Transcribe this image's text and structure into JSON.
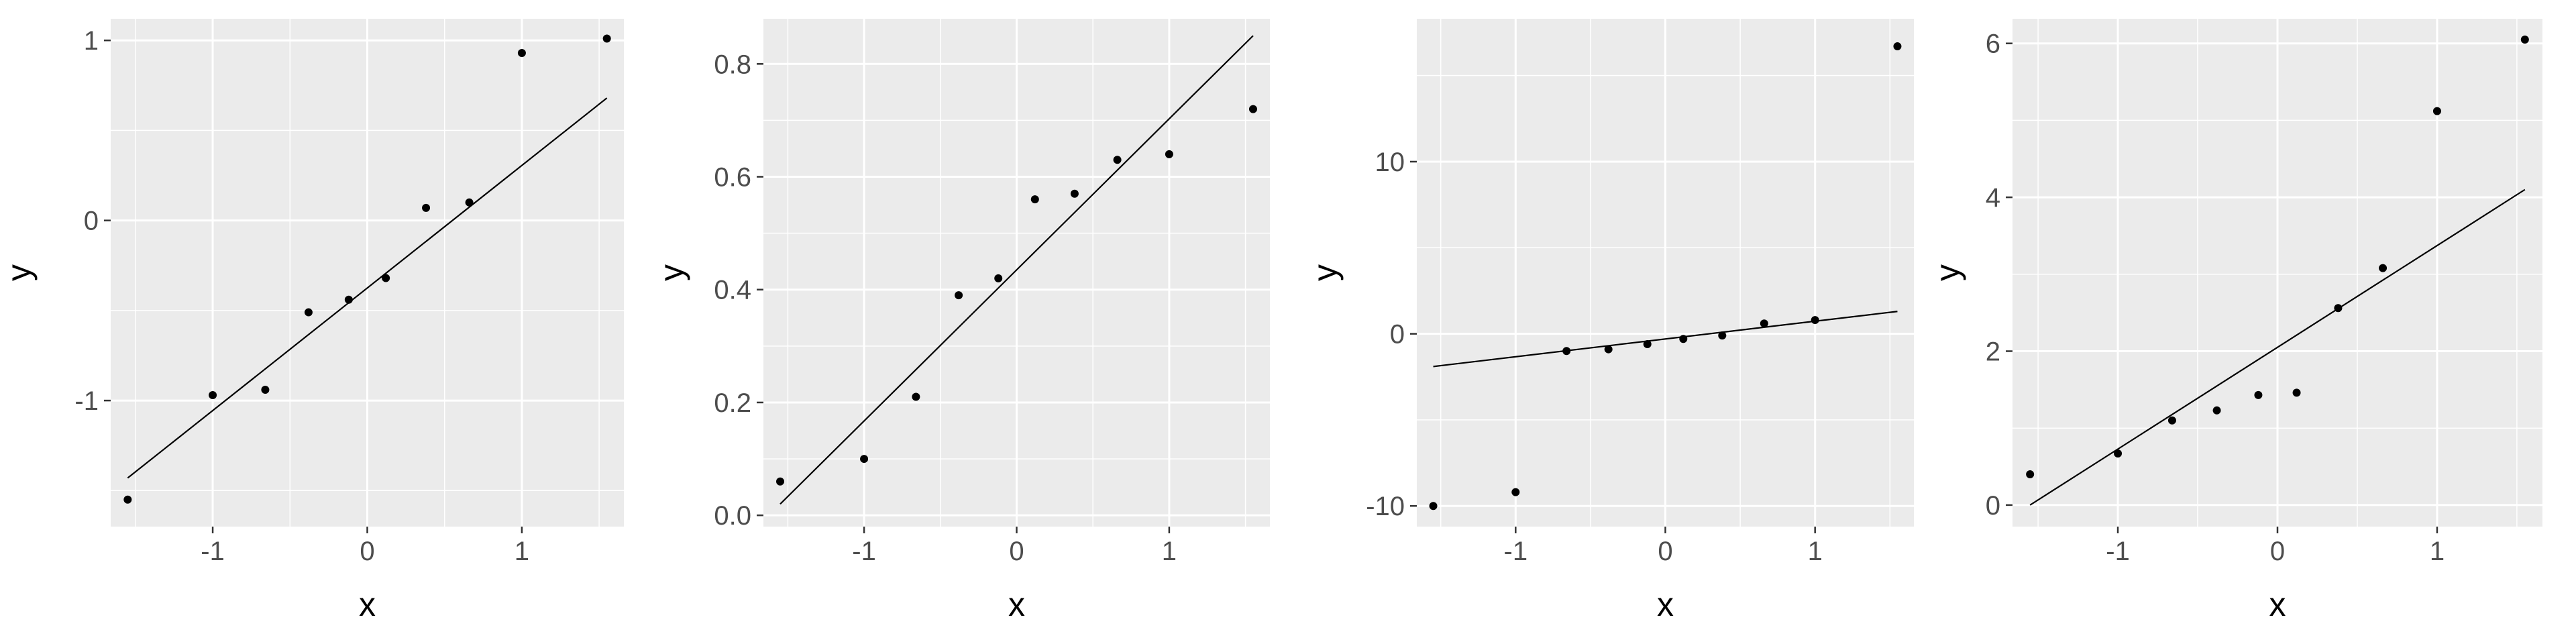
{
  "chart_data": [
    {
      "type": "scatter",
      "xlabel": "x",
      "ylabel": "y",
      "xlim": [
        -1.66,
        1.66
      ],
      "ylim": [
        -1.7,
        1.12
      ],
      "xticks": [
        -1,
        0,
        1
      ],
      "xtick_labels": [
        "-1",
        "0",
        "1"
      ],
      "yticks": [
        -1,
        0,
        1
      ],
      "ytick_labels": [
        "-1",
        "0",
        "1"
      ],
      "grid": true,
      "points": {
        "x": [
          -1.55,
          -1.0,
          -0.66,
          -0.38,
          -0.12,
          0.12,
          0.38,
          0.66,
          1.0,
          1.55
        ],
        "y": [
          -1.55,
          -0.97,
          -0.94,
          -0.51,
          -0.44,
          -0.32,
          0.07,
          0.1,
          0.93,
          1.01
        ]
      },
      "line": {
        "x": [
          -1.55,
          1.55
        ],
        "y": [
          -1.43,
          0.68
        ]
      }
    },
    {
      "type": "scatter",
      "xlabel": "x",
      "ylabel": "y",
      "xlim": [
        -1.66,
        1.66
      ],
      "ylim": [
        -0.02,
        0.88
      ],
      "xticks": [
        -1,
        0,
        1
      ],
      "xtick_labels": [
        "-1",
        "0",
        "1"
      ],
      "yticks": [
        0,
        0.2,
        0.4,
        0.6,
        0.8
      ],
      "ytick_labels": [
        "0.0",
        "0.2",
        "0.4",
        "0.6",
        "0.8"
      ],
      "grid": true,
      "points": {
        "x": [
          -1.55,
          -1.0,
          -0.66,
          -0.38,
          -0.12,
          0.12,
          0.38,
          0.66,
          1.0,
          1.55
        ],
        "y": [
          0.06,
          0.1,
          0.21,
          0.39,
          0.42,
          0.56,
          0.57,
          0.63,
          0.64,
          0.72
        ]
      },
      "line": {
        "x": [
          -1.55,
          1.55
        ],
        "y": [
          0.02,
          0.85
        ]
      }
    },
    {
      "type": "scatter",
      "xlabel": "x",
      "ylabel": "y",
      "xlim": [
        -1.66,
        1.66
      ],
      "ylim": [
        -11.2,
        18.3
      ],
      "xticks": [
        -1,
        0,
        1
      ],
      "xtick_labels": [
        "-1",
        "0",
        "1"
      ],
      "yticks": [
        -10,
        0,
        10
      ],
      "ytick_labels": [
        "-10",
        "0",
        "10"
      ],
      "grid": true,
      "points": {
        "x": [
          -1.55,
          -1.0,
          -0.66,
          -0.38,
          -0.12,
          0.12,
          0.38,
          0.66,
          1.0,
          1.55
        ],
        "y": [
          -10.0,
          -9.2,
          -1.0,
          -0.9,
          -0.6,
          -0.3,
          -0.1,
          0.6,
          0.8,
          16.7
        ]
      },
      "line": {
        "x": [
          -1.55,
          1.55
        ],
        "y": [
          -1.9,
          1.3
        ]
      }
    },
    {
      "type": "scatter",
      "xlabel": "x",
      "ylabel": "y",
      "xlim": [
        -1.66,
        1.66
      ],
      "ylim": [
        -0.28,
        6.32
      ],
      "xticks": [
        -1,
        0,
        1
      ],
      "xtick_labels": [
        "-1",
        "0",
        "1"
      ],
      "yticks": [
        0,
        2,
        4,
        6
      ],
      "ytick_labels": [
        "0",
        "2",
        "4",
        "6"
      ],
      "grid": true,
      "points": {
        "x": [
          -1.55,
          -1.0,
          -0.66,
          -0.38,
          -0.12,
          0.12,
          0.38,
          0.66,
          1.0,
          1.55
        ],
        "y": [
          0.4,
          0.67,
          1.1,
          1.23,
          1.43,
          1.46,
          2.56,
          3.08,
          5.12,
          6.05
        ]
      },
      "line": {
        "x": [
          -1.55,
          1.55
        ],
        "y": [
          0.0,
          4.1
        ]
      }
    }
  ]
}
